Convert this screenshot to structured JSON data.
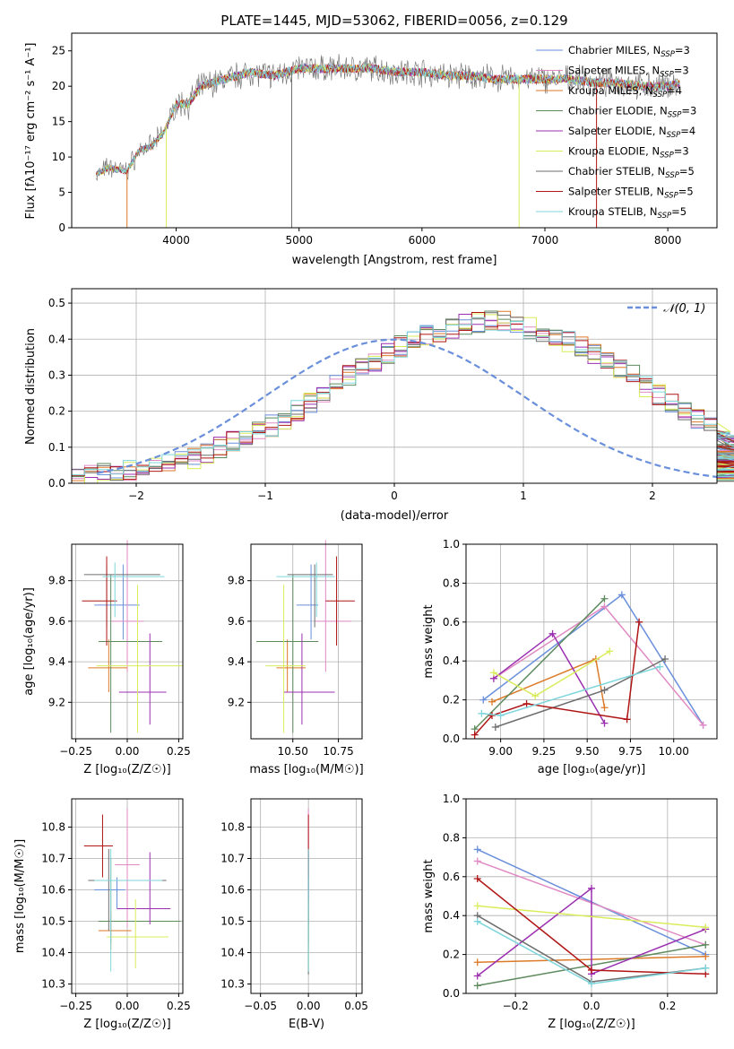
{
  "colors": [
    "#6a8fdb",
    "#e08ac4",
    "#dd7a28",
    "#5e8a5e",
    "#9b2fb0",
    "#d9ec5a",
    "#6e6e6e",
    "#b01515",
    "#7dd6dc"
  ],
  "chart_data": [
    {
      "type": "line",
      "title": "PLATE=1445, MJD=53062, FIBERID=0056, z=0.129",
      "xlabel": "wavelength [Angstrom, rest frame]",
      "ylabel": "Flux [fλ10⁻¹⁷ erg cm⁻² s⁻¹ A⁻¹]",
      "xlim": [
        3150,
        8400
      ],
      "ylim": [
        0,
        27.5
      ],
      "xticks": [
        "4000",
        "5000",
        "6000",
        "7000",
        "8000"
      ],
      "yticks": [
        "0",
        "5",
        "10",
        "15",
        "20",
        "25"
      ],
      "grid": false,
      "legend": "top-right",
      "series_names": [
        "Chabrier MILES, N_SSP=3",
        "Salpeter MILES, N_SSP=3",
        "Kroupa MILES, N_SSP=4",
        "Chabrier ELODIE, N_SSP=3",
        "Salpeter ELODIE, N_SSP=4",
        "Kroupa ELODIE, N_SSP=3",
        "Chabrier STELIB, N_SSP=5",
        "Salpeter STELIB, N_SSP=5",
        "Kroupa STELIB, N_SSP=5"
      ],
      "continuum": {
        "x": [
          3350,
          3450,
          3600,
          3700,
          3800,
          3900,
          4000,
          4100,
          4200,
          4300,
          4400,
          4600,
          4800,
          5000,
          5200,
          5400,
          5600,
          5800,
          6000,
          6200,
          6400,
          6600,
          6800,
          7000,
          7200,
          7400,
          7600,
          7800,
          8000,
          8100
        ],
        "y": [
          7.5,
          8.5,
          8.0,
          11.0,
          11.5,
          13.5,
          17.5,
          17.5,
          20.0,
          20.5,
          21.0,
          22.0,
          21.5,
          22.5,
          22.5,
          22.5,
          22.5,
          22.0,
          22.0,
          21.5,
          21.5,
          21.0,
          21.0,
          21.0,
          21.0,
          20.5,
          20.5,
          20.0,
          20.0,
          20.5
        ]
      },
      "dropouts": [
        {
          "x": 3600,
          "series": "Kroupa MILES"
        },
        {
          "x": 3920,
          "series": "Kroupa ELODIE"
        },
        {
          "x": 4940,
          "series": "Chabrier STELIB"
        },
        {
          "x": 6790,
          "series": "Kroupa ELODIE"
        },
        {
          "x": 7420,
          "series": "Salpeter STELIB"
        }
      ]
    },
    {
      "type": "histogram",
      "xlabel": "(data-model)/error",
      "ylabel": "Normed distribution",
      "xlim": [
        -2.5,
        2.5
      ],
      "ylim": [
        0,
        0.54
      ],
      "xticks": [
        "−2",
        "−1",
        "0",
        "1",
        "2"
      ],
      "yticks": [
        "0.0",
        "0.1",
        "0.2",
        "0.3",
        "0.4",
        "0.5"
      ],
      "grid": true,
      "legend": "top-right",
      "reference_curve": {
        "name": "𝒩(0, 1)",
        "mean": 0,
        "sigma": 1,
        "peak_value": 0.399
      },
      "bin_width": 0.1,
      "bins_from": -2.5,
      "mean_profile": [
        0.02,
        0.023,
        0.028,
        0.032,
        0.036,
        0.04,
        0.045,
        0.052,
        0.06,
        0.07,
        0.085,
        0.1,
        0.115,
        0.13,
        0.145,
        0.16,
        0.18,
        0.2,
        0.225,
        0.25,
        0.27,
        0.3,
        0.32,
        0.34,
        0.36,
        0.38,
        0.395,
        0.41,
        0.42,
        0.43,
        0.44,
        0.445,
        0.45,
        0.448,
        0.44,
        0.43,
        0.42,
        0.41,
        0.395,
        0.38,
        0.36,
        0.34,
        0.32,
        0.3,
        0.27,
        0.245,
        0.22,
        0.2,
        0.18,
        0.16,
        0.14,
        0.12,
        0.105,
        0.09,
        0.075,
        0.065,
        0.055,
        0.048,
        0.042,
        0.036,
        0.03
      ],
      "wiggle_amplitude": 0.03
    },
    {
      "type": "scatter",
      "subtype": "errorbar",
      "xlabel": "Z [log₁₀(Z/Z☉)]",
      "ylabel": "age  [log₁₀(age/yr)]",
      "xlim": [
        -0.27,
        0.27
      ],
      "ylim": [
        9.02,
        9.98
      ],
      "xticks": [
        "−0.25",
        "0.00",
        "0.25"
      ],
      "xtick_values": [
        -0.25,
        0.0,
        0.25
      ],
      "yticks": [
        "9.2",
        "9.4",
        "9.6",
        "9.8"
      ],
      "ytick_values": [
        9.2,
        9.4,
        9.6,
        9.8
      ],
      "grid": true,
      "points": [
        {
          "x": -0.02,
          "y": 9.68,
          "xerr": [
            0.14,
            0.08
          ],
          "yerr": [
            0.17,
            0.2
          ]
        },
        {
          "x": 0.0,
          "y": 9.6,
          "xerr": [
            0.08,
            0.08
          ],
          "yerr": [
            0.25,
            0.4
          ]
        },
        {
          "x": -0.09,
          "y": 9.37,
          "xerr": [
            0.1,
            0.09
          ],
          "yerr": [
            0.12,
            0.14
          ]
        },
        {
          "x": -0.08,
          "y": 9.5,
          "xerr": [
            0.06,
            0.25
          ],
          "yerr": [
            0.45,
            0.33
          ]
        },
        {
          "x": 0.11,
          "y": 9.25,
          "xerr": [
            0.15,
            0.08
          ],
          "yerr": [
            0.16,
            0.29
          ]
        },
        {
          "x": 0.05,
          "y": 9.38,
          "xerr": [
            0.2,
            0.22
          ],
          "yerr": [
            0.33,
            0.4
          ]
        },
        {
          "x": -0.1,
          "y": 9.83,
          "xerr": [
            0.11,
            0.26
          ],
          "yerr": [
            0.26,
            0.05
          ]
        },
        {
          "x": -0.1,
          "y": 9.7,
          "xerr": [
            0.12,
            0.05
          ],
          "yerr": [
            0.22,
            0.22
          ]
        },
        {
          "x": -0.06,
          "y": 9.82,
          "xerr": [
            0.06,
            0.24
          ],
          "yerr": [
            0.2,
            0.07
          ]
        }
      ]
    },
    {
      "type": "scatter",
      "subtype": "errorbar",
      "xlabel": "mass [log₁₀(M/M☉)]",
      "ylabel": "",
      "xlim": [
        10.27,
        10.88
      ],
      "ylim": [
        9.02,
        9.98
      ],
      "xticks": [
        "10.50",
        "10.75"
      ],
      "xtick_values": [
        10.5,
        10.75
      ],
      "yticks": [
        "9.2",
        "9.4",
        "9.6",
        "9.8"
      ],
      "ytick_values": [
        9.2,
        9.4,
        9.6,
        9.8
      ],
      "grid": true,
      "points": [
        {
          "x": 10.6,
          "y": 9.68,
          "xerr": [
            0.08,
            0.04
          ],
          "yerr": [
            0.17,
            0.2
          ]
        },
        {
          "x": 10.68,
          "y": 9.6,
          "xerr": [
            0.06,
            0.14
          ],
          "yerr": [
            0.25,
            0.4
          ]
        },
        {
          "x": 10.47,
          "y": 9.37,
          "xerr": [
            0.06,
            0.1
          ],
          "yerr": [
            0.12,
            0.14
          ]
        },
        {
          "x": 10.5,
          "y": 9.5,
          "xerr": [
            0.2,
            0.14
          ],
          "yerr": [
            0.45,
            0.33
          ]
        },
        {
          "x": 10.55,
          "y": 9.25,
          "xerr": [
            0.1,
            0.18
          ],
          "yerr": [
            0.16,
            0.29
          ]
        },
        {
          "x": 10.45,
          "y": 9.38,
          "xerr": [
            0.1,
            0.12
          ],
          "yerr": [
            0.33,
            0.4
          ]
        },
        {
          "x": 10.62,
          "y": 9.83,
          "xerr": [
            0.15,
            0.1
          ],
          "yerr": [
            0.26,
            0.05
          ]
        },
        {
          "x": 10.74,
          "y": 9.7,
          "xerr": [
            0.06,
            0.1
          ],
          "yerr": [
            0.22,
            0.22
          ]
        },
        {
          "x": 10.63,
          "y": 9.82,
          "xerr": [
            0.22,
            0.1
          ],
          "yerr": [
            0.2,
            0.07
          ]
        }
      ]
    },
    {
      "type": "line",
      "xlabel": "age  [log₁₀(age/yr)]",
      "ylabel": "mass weight",
      "xlim": [
        8.8,
        10.25
      ],
      "ylim": [
        0,
        1
      ],
      "xticks": [
        "9.00",
        "9.25",
        "9.50",
        "9.75",
        "10.00"
      ],
      "xtick_values": [
        9.0,
        9.25,
        9.5,
        9.75,
        10.0
      ],
      "yticks": [
        "0.0",
        "0.2",
        "0.4",
        "0.6",
        "0.8",
        "1.0"
      ],
      "ytick_values": [
        0,
        0.2,
        0.4,
        0.6,
        0.8,
        1.0
      ],
      "grid": true,
      "series": [
        {
          "x": [
            8.9,
            9.7,
            10.17
          ],
          "y": [
            0.2,
            0.74,
            0.07
          ]
        },
        {
          "x": [
            8.96,
            9.6,
            10.17
          ],
          "y": [
            0.31,
            0.68,
            0.07
          ]
        },
        {
          "x": [
            8.95,
            9.55,
            9.6
          ],
          "y": [
            0.19,
            0.41,
            0.16
          ]
        },
        {
          "x": [
            8.85,
            9.6
          ],
          "y": [
            0.05,
            0.72
          ]
        },
        {
          "x": [
            8.96,
            9.3,
            9.6
          ],
          "y": [
            0.31,
            0.54,
            0.08
          ]
        },
        {
          "x": [
            8.96,
            9.2,
            9.63
          ],
          "y": [
            0.34,
            0.22,
            0.45
          ]
        },
        {
          "x": [
            8.97,
            9.6,
            9.95
          ],
          "y": [
            0.06,
            0.25,
            0.41
          ]
        },
        {
          "x": [
            8.85,
            8.95,
            9.15,
            9.73,
            9.8
          ],
          "y": [
            0.02,
            0.12,
            0.18,
            0.1,
            0.6
          ]
        },
        {
          "x": [
            8.89,
            9.0,
            9.92
          ],
          "y": [
            0.13,
            0.12,
            0.37
          ]
        }
      ]
    },
    {
      "type": "scatter",
      "subtype": "errorbar",
      "xlabel": "Z [log₁₀(Z/Z☉)]",
      "ylabel": "mass [log₁₀(M/M☉)]",
      "xlim": [
        -0.27,
        0.27
      ],
      "ylim": [
        10.27,
        10.89
      ],
      "xticks": [
        "−0.25",
        "0.00",
        "0.25"
      ],
      "xtick_values": [
        -0.25,
        0.0,
        0.25
      ],
      "yticks": [
        "10.3",
        "10.4",
        "10.5",
        "10.6",
        "10.7",
        "10.8"
      ],
      "ytick_values": [
        10.3,
        10.4,
        10.5,
        10.6,
        10.7,
        10.8
      ],
      "grid": true,
      "points": [
        {
          "x": -0.05,
          "y": 10.6,
          "xerr": [
            0.11,
            0.04
          ],
          "yerr": [
            0.06,
            0.04
          ]
        },
        {
          "x": 0.0,
          "y": 10.68,
          "xerr": [
            0.06,
            0.06
          ],
          "yerr": [
            0.2,
            0.18
          ]
        },
        {
          "x": -0.08,
          "y": 10.47,
          "xerr": [
            0.06,
            0.1
          ],
          "yerr": [
            0.06,
            0.06
          ]
        },
        {
          "x": -0.08,
          "y": 10.5,
          "xerr": [
            0.06,
            0.34
          ],
          "yerr": [
            0.07,
            0.2
          ]
        },
        {
          "x": 0.11,
          "y": 10.54,
          "xerr": [
            0.16,
            0.1
          ],
          "yerr": [
            0.05,
            0.18
          ]
        },
        {
          "x": 0.04,
          "y": 10.45,
          "xerr": [
            0.14,
            0.16
          ],
          "yerr": [
            0.1,
            0.12
          ]
        },
        {
          "x": -0.09,
          "y": 10.63,
          "xerr": [
            0.1,
            0.28
          ],
          "yerr": [
            0.16,
            0.1
          ]
        },
        {
          "x": -0.12,
          "y": 10.74,
          "xerr": [
            0.09,
            0.05
          ],
          "yerr": [
            0.1,
            0.1
          ]
        },
        {
          "x": -0.08,
          "y": 10.63,
          "xerr": [
            0.08,
            0.25
          ],
          "yerr": [
            0.29,
            0.1
          ]
        }
      ]
    },
    {
      "type": "scatter",
      "subtype": "errorbar",
      "xlabel": "E(B-V)",
      "ylabel": "",
      "xlim": [
        -0.06,
        0.056
      ],
      "ylim": [
        10.27,
        10.89
      ],
      "xticks": [
        "−0.05",
        "0.00",
        "0.05"
      ],
      "xtick_values": [
        -0.05,
        0.0,
        0.05
      ],
      "yticks": [
        "10.3",
        "10.4",
        "10.5",
        "10.6",
        "10.7",
        "10.8"
      ],
      "ytick_values": [
        10.3,
        10.4,
        10.5,
        10.6,
        10.7,
        10.8
      ],
      "grid": true,
      "points": [
        {
          "x": 0.0,
          "y": 10.6,
          "xerr": [
            0,
            0
          ],
          "yerr": [
            0.06,
            0.04
          ]
        },
        {
          "x": 0.0,
          "y": 10.68,
          "xerr": [
            0,
            0
          ],
          "yerr": [
            0.2,
            0.18
          ]
        },
        {
          "x": 0.0,
          "y": 10.47,
          "xerr": [
            0,
            0
          ],
          "yerr": [
            0.06,
            0.06
          ]
        },
        {
          "x": 0.0,
          "y": 10.5,
          "xerr": [
            0,
            0
          ],
          "yerr": [
            0.07,
            0.2
          ]
        },
        {
          "x": 0.0,
          "y": 10.54,
          "xerr": [
            0,
            0
          ],
          "yerr": [
            0.05,
            0.18
          ]
        },
        {
          "x": 0.0,
          "y": 10.45,
          "xerr": [
            0,
            0
          ],
          "yerr": [
            0.1,
            0.12
          ]
        },
        {
          "x": 0.0,
          "y": 10.63,
          "xerr": [
            0,
            0
          ],
          "yerr": [
            0.3,
            0.1
          ]
        },
        {
          "x": 0.0,
          "y": 10.74,
          "xerr": [
            0,
            0
          ],
          "yerr": [
            0.1,
            0.1
          ]
        },
        {
          "x": 0.0,
          "y": 10.63,
          "xerr": [
            0,
            0
          ],
          "yerr": [
            0.29,
            0.1
          ]
        }
      ]
    },
    {
      "type": "line",
      "xlabel": "Z [log₁₀(Z/Z☉)]",
      "ylabel": "mass weight",
      "xlim": [
        -0.33,
        0.33
      ],
      "ylim": [
        0,
        1
      ],
      "xticks": [
        "−0.2",
        "0.0",
        "0.2"
      ],
      "xtick_values": [
        -0.2,
        0.0,
        0.2
      ],
      "yticks": [
        "0.0",
        "0.2",
        "0.4",
        "0.6",
        "0.8",
        "1.0"
      ],
      "ytick_values": [
        0,
        0.2,
        0.4,
        0.6,
        0.8,
        1.0
      ],
      "grid": true,
      "series": [
        {
          "x": [
            -0.3,
            0.3
          ],
          "y": [
            0.74,
            0.2
          ]
        },
        {
          "x": [
            -0.3,
            0.3
          ],
          "y": [
            0.68,
            0.25
          ]
        },
        {
          "x": [
            -0.3,
            0.3
          ],
          "y": [
            0.16,
            0.19
          ]
        },
        {
          "x": [
            -0.3,
            0.3
          ],
          "y": [
            0.04,
            0.25
          ]
        },
        {
          "x": [
            -0.3,
            0.0,
            0.0,
            0.3
          ],
          "y": [
            0.09,
            0.54,
            0.1,
            0.33
          ]
        },
        {
          "x": [
            -0.3,
            0.3
          ],
          "y": [
            0.45,
            0.34
          ]
        },
        {
          "x": [
            -0.3,
            0.0,
            0.3
          ],
          "y": [
            0.4,
            0.06,
            0.13
          ]
        },
        {
          "x": [
            -0.3,
            0.0,
            0.3
          ],
          "y": [
            0.59,
            0.12,
            0.1
          ]
        },
        {
          "x": [
            -0.3,
            0.0,
            0.3
          ],
          "y": [
            0.37,
            0.05,
            0.13
          ]
        }
      ]
    }
  ]
}
